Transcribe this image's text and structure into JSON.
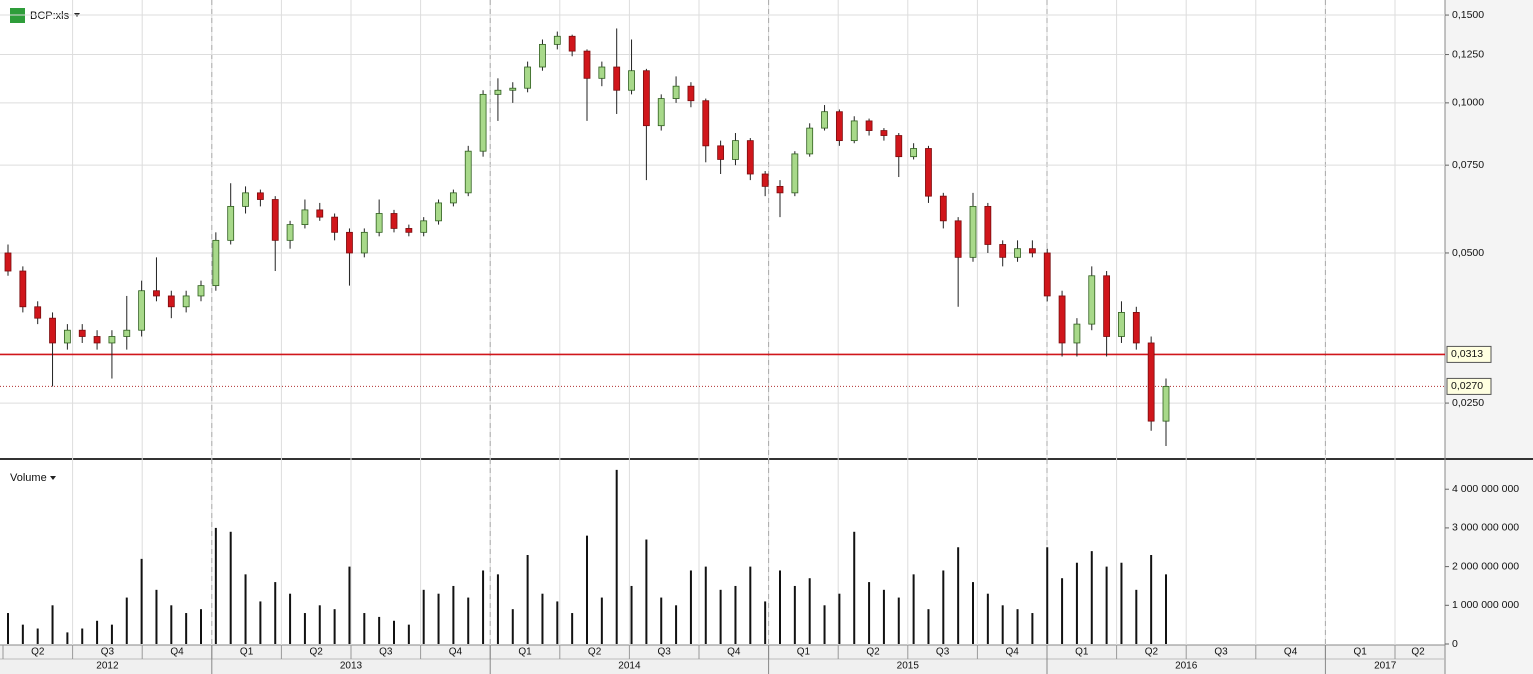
{
  "chart_data": {
    "type": "candlestick",
    "title": "BCP:xls",
    "volume_title": "Volume",
    "log_scale": true,
    "grid": true,
    "up_color": "#a8d98a",
    "down_color": "#d0161b",
    "volume_color": "#111111",
    "ylim": [
      0.0194,
      0.1608
    ],
    "yticks": [
      {
        "value": 0.025,
        "label": "0,0250"
      },
      {
        "value": 0.05,
        "label": "0,0500"
      },
      {
        "value": 0.075,
        "label": "0,0750"
      },
      {
        "value": 0.1,
        "label": "0,1000"
      },
      {
        "value": 0.125,
        "label": "0,1250"
      },
      {
        "value": 0.15,
        "label": "0,1500"
      }
    ],
    "levels": [
      {
        "value": 0.0313,
        "label": "0,0313",
        "color": "#d0161b",
        "style": "solid"
      },
      {
        "value": 0.027,
        "label": "0,0270",
        "color": "#b03030",
        "style": "dotted"
      }
    ],
    "volume_ylim": [
      0,
      4600000000
    ],
    "volume_ticks": [
      0,
      {
        "value": 1000000000,
        "label": "1 000 000 000"
      },
      {
        "value": 2000000000,
        "label": "2 000 000 000"
      },
      {
        "value": 3000000000,
        "label": "3 000 000 000"
      },
      {
        "value": 4000000000,
        "label": "4 000 000 000"
      }
    ],
    "quarters": [
      "Q2",
      "Q3",
      "Q4",
      "Q1",
      "Q2",
      "Q3",
      "Q4",
      "Q1",
      "Q2",
      "Q3",
      "Q4",
      "Q1",
      "Q2",
      "Q3",
      "Q4",
      "Q1",
      "Q2",
      "Q3",
      "Q4",
      "Q1",
      "Q2"
    ],
    "years": [
      "2012",
      "2013",
      "2014",
      "2015",
      "2016",
      "2017"
    ],
    "open": [
      0.05,
      0.046,
      0.039,
      0.037,
      0.033,
      0.035,
      0.034,
      0.033,
      0.034,
      0.035,
      0.042,
      0.041,
      0.039,
      0.041,
      0.043,
      0.053,
      0.062,
      0.066,
      0.064,
      0.053,
      0.057,
      0.061,
      0.059,
      0.055,
      0.05,
      0.055,
      0.06,
      0.056,
      0.055,
      0.058,
      0.063,
      0.066,
      0.08,
      0.104,
      0.106,
      0.107,
      0.118,
      0.131,
      0.136,
      0.127,
      0.112,
      0.118,
      0.106,
      0.116,
      0.09,
      0.102,
      0.108,
      0.101,
      0.082,
      0.077,
      0.084,
      0.072,
      0.068,
      0.066,
      0.079,
      0.089,
      0.096,
      0.084,
      0.092,
      0.088,
      0.086,
      0.078,
      0.081,
      0.065,
      0.058,
      0.049,
      0.062,
      0.052,
      0.049,
      0.051,
      0.05,
      0.041,
      0.033,
      0.036,
      0.045,
      0.034,
      0.038,
      0.033,
      0.023
    ],
    "high": [
      0.052,
      0.047,
      0.04,
      0.038,
      0.036,
      0.036,
      0.035,
      0.035,
      0.041,
      0.044,
      0.049,
      0.042,
      0.042,
      0.044,
      0.055,
      0.069,
      0.068,
      0.067,
      0.065,
      0.058,
      0.064,
      0.063,
      0.06,
      0.056,
      0.056,
      0.064,
      0.061,
      0.057,
      0.059,
      0.064,
      0.067,
      0.082,
      0.106,
      0.112,
      0.11,
      0.121,
      0.134,
      0.139,
      0.137,
      0.128,
      0.121,
      0.141,
      0.134,
      0.117,
      0.104,
      0.113,
      0.11,
      0.102,
      0.084,
      0.087,
      0.085,
      0.073,
      0.07,
      0.08,
      0.091,
      0.099,
      0.097,
      0.094,
      0.093,
      0.089,
      0.087,
      0.083,
      0.082,
      0.066,
      0.059,
      0.066,
      0.063,
      0.053,
      0.053,
      0.053,
      0.051,
      0.042,
      0.037,
      0.047,
      0.046,
      0.04,
      0.039,
      0.034,
      0.028
    ],
    "low": [
      0.045,
      0.038,
      0.036,
      0.027,
      0.032,
      0.033,
      0.032,
      0.028,
      0.032,
      0.034,
      0.04,
      0.037,
      0.038,
      0.04,
      0.042,
      0.052,
      0.06,
      0.062,
      0.046,
      0.051,
      0.056,
      0.058,
      0.053,
      0.043,
      0.049,
      0.054,
      0.055,
      0.054,
      0.054,
      0.057,
      0.062,
      0.065,
      0.078,
      0.092,
      0.1,
      0.105,
      0.116,
      0.128,
      0.124,
      0.092,
      0.108,
      0.095,
      0.104,
      0.07,
      0.088,
      0.1,
      0.098,
      0.076,
      0.072,
      0.075,
      0.07,
      0.065,
      0.059,
      0.065,
      0.078,
      0.088,
      0.082,
      0.083,
      0.086,
      0.084,
      0.071,
      0.077,
      0.063,
      0.056,
      0.039,
      0.048,
      0.05,
      0.047,
      0.048,
      0.049,
      0.04,
      0.031,
      0.031,
      0.035,
      0.031,
      0.033,
      0.032,
      0.022,
      0.0205
    ],
    "close": [
      0.046,
      0.039,
      0.037,
      0.033,
      0.035,
      0.034,
      0.033,
      0.034,
      0.035,
      0.042,
      0.041,
      0.039,
      0.041,
      0.043,
      0.053,
      0.062,
      0.066,
      0.064,
      0.053,
      0.057,
      0.061,
      0.059,
      0.055,
      0.05,
      0.055,
      0.06,
      0.056,
      0.055,
      0.058,
      0.063,
      0.066,
      0.08,
      0.104,
      0.106,
      0.107,
      0.118,
      0.131,
      0.136,
      0.127,
      0.112,
      0.118,
      0.106,
      0.116,
      0.09,
      0.102,
      0.108,
      0.101,
      0.082,
      0.077,
      0.084,
      0.072,
      0.068,
      0.066,
      0.079,
      0.089,
      0.096,
      0.084,
      0.092,
      0.088,
      0.086,
      0.078,
      0.081,
      0.065,
      0.058,
      0.049,
      0.062,
      0.052,
      0.049,
      0.051,
      0.05,
      0.041,
      0.033,
      0.036,
      0.045,
      0.034,
      0.038,
      0.033,
      0.023,
      0.027
    ],
    "volume": [
      800000000,
      500000000,
      400000000,
      1000000000,
      300000000,
      400000000,
      600000000,
      500000000,
      1200000000,
      2200000000,
      1400000000,
      1000000000,
      800000000,
      900000000,
      3000000000,
      2900000000,
      1800000000,
      1100000000,
      1600000000,
      1300000000,
      800000000,
      1000000000,
      900000000,
      2000000000,
      800000000,
      700000000,
      600000000,
      500000000,
      1400000000,
      1300000000,
      1500000000,
      1200000000,
      1900000000,
      1800000000,
      900000000,
      2300000000,
      1300000000,
      1100000000,
      800000000,
      2800000000,
      1200000000,
      4500000000,
      1500000000,
      2700000000,
      1200000000,
      1000000000,
      1900000000,
      2000000000,
      1400000000,
      1500000000,
      2000000000,
      1100000000,
      1900000000,
      1500000000,
      1700000000,
      1000000000,
      1300000000,
      2900000000,
      1600000000,
      1400000000,
      1200000000,
      1800000000,
      900000000,
      1900000000,
      2500000000,
      1600000000,
      1300000000,
      1000000000,
      900000000,
      800000000,
      2500000000,
      1700000000,
      2100000000,
      2400000000,
      2000000000,
      2100000000,
      1400000000,
      2300000000,
      1800000000
    ]
  }
}
